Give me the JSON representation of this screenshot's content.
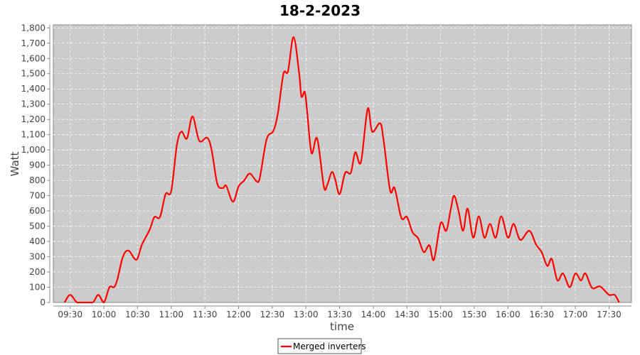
{
  "chart_data": {
    "type": "line",
    "title": "18-2-2023",
    "xlabel": "time",
    "ylabel": "Watt",
    "xlim": [
      "09:15",
      "17:50"
    ],
    "ylim": [
      0,
      1820
    ],
    "grid": true,
    "legend_position": "bottom",
    "colors": {
      "series": "#ff0000",
      "plot_background": "#cccccc",
      "grid": "#ffffff"
    },
    "x_ticks": [
      "09:30",
      "10:00",
      "10:30",
      "11:00",
      "11:30",
      "12:00",
      "12:30",
      "13:00",
      "13:30",
      "14:00",
      "14:30",
      "15:00",
      "15:30",
      "16:00",
      "16:30",
      "17:00",
      "17:30"
    ],
    "y_ticks": [
      "0",
      "100",
      "200",
      "300",
      "400",
      "500",
      "600",
      "700",
      "800",
      "900",
      "1,000",
      "1,100",
      "1,200",
      "1,300",
      "1,400",
      "1,500",
      "1,600",
      "1,700",
      "1,800"
    ],
    "y_tick_values": [
      0,
      100,
      200,
      300,
      400,
      500,
      600,
      700,
      800,
      900,
      1000,
      1100,
      1200,
      1300,
      1400,
      1500,
      1600,
      1700,
      1800
    ],
    "series": [
      {
        "name": "Merged inverters",
        "x": [
          "09:25",
          "09:30",
          "09:36",
          "09:41",
          "09:50",
          "09:55",
          "10:00",
          "10:05",
          "10:09",
          "10:12",
          "10:17",
          "10:22",
          "10:29",
          "10:34",
          "10:41",
          "10:45",
          "10:50",
          "10:55",
          "11:00",
          "11:05",
          "11:09",
          "11:14",
          "11:19",
          "11:25",
          "11:32",
          "11:36",
          "11:41",
          "11:46",
          "11:49",
          "11:55",
          "12:00",
          "12:05",
          "12:10",
          "12:16",
          "12:19",
          "12:25",
          "12:31",
          "12:35",
          "12:40",
          "12:44",
          "12:49",
          "12:54",
          "12:56",
          "12:59",
          "13:01",
          "13:05",
          "13:10",
          "13:16",
          "13:19",
          "13:23",
          "13:26",
          "13:30",
          "13:35",
          "13:40",
          "13:44",
          "13:49",
          "13:55",
          "13:59",
          "14:06",
          "14:09",
          "14:15",
          "14:19",
          "14:25",
          "14:30",
          "14:35",
          "14:40",
          "14:45",
          "14:50",
          "14:54",
          "15:00",
          "15:05",
          "15:09",
          "15:12",
          "15:16",
          "15:20",
          "15:24",
          "15:29",
          "15:34",
          "15:39",
          "15:44",
          "15:49",
          "15:54",
          "16:00",
          "16:05",
          "16:11",
          "16:19",
          "16:25",
          "16:30",
          "16:35",
          "16:39",
          "16:44",
          "16:49",
          "16:55",
          "17:00",
          "17:05",
          "17:09",
          "17:15",
          "17:22",
          "17:30",
          "17:35",
          "17:39"
        ],
        "values": [
          0,
          50,
          0,
          0,
          0,
          50,
          0,
          100,
          100,
          150,
          300,
          340,
          280,
          380,
          480,
          560,
          560,
          710,
          730,
          1030,
          1120,
          1075,
          1220,
          1060,
          1080,
          1000,
          780,
          750,
          765,
          660,
          760,
          800,
          845,
          795,
          820,
          1070,
          1125,
          1240,
          1500,
          1515,
          1740,
          1500,
          1350,
          1380,
          1260,
          980,
          1075,
          760,
          770,
          855,
          810,
          710,
          850,
          850,
          985,
          920,
          1270,
          1120,
          1175,
          1075,
          735,
          750,
          555,
          560,
          460,
          420,
          330,
          375,
          280,
          520,
          470,
          610,
          700,
          600,
          470,
          615,
          425,
          565,
          425,
          515,
          425,
          565,
          425,
          515,
          410,
          470,
          380,
          330,
          240,
          285,
          145,
          190,
          100,
          190,
          145,
          190,
          95,
          105,
          50,
          50,
          0
        ]
      }
    ]
  }
}
